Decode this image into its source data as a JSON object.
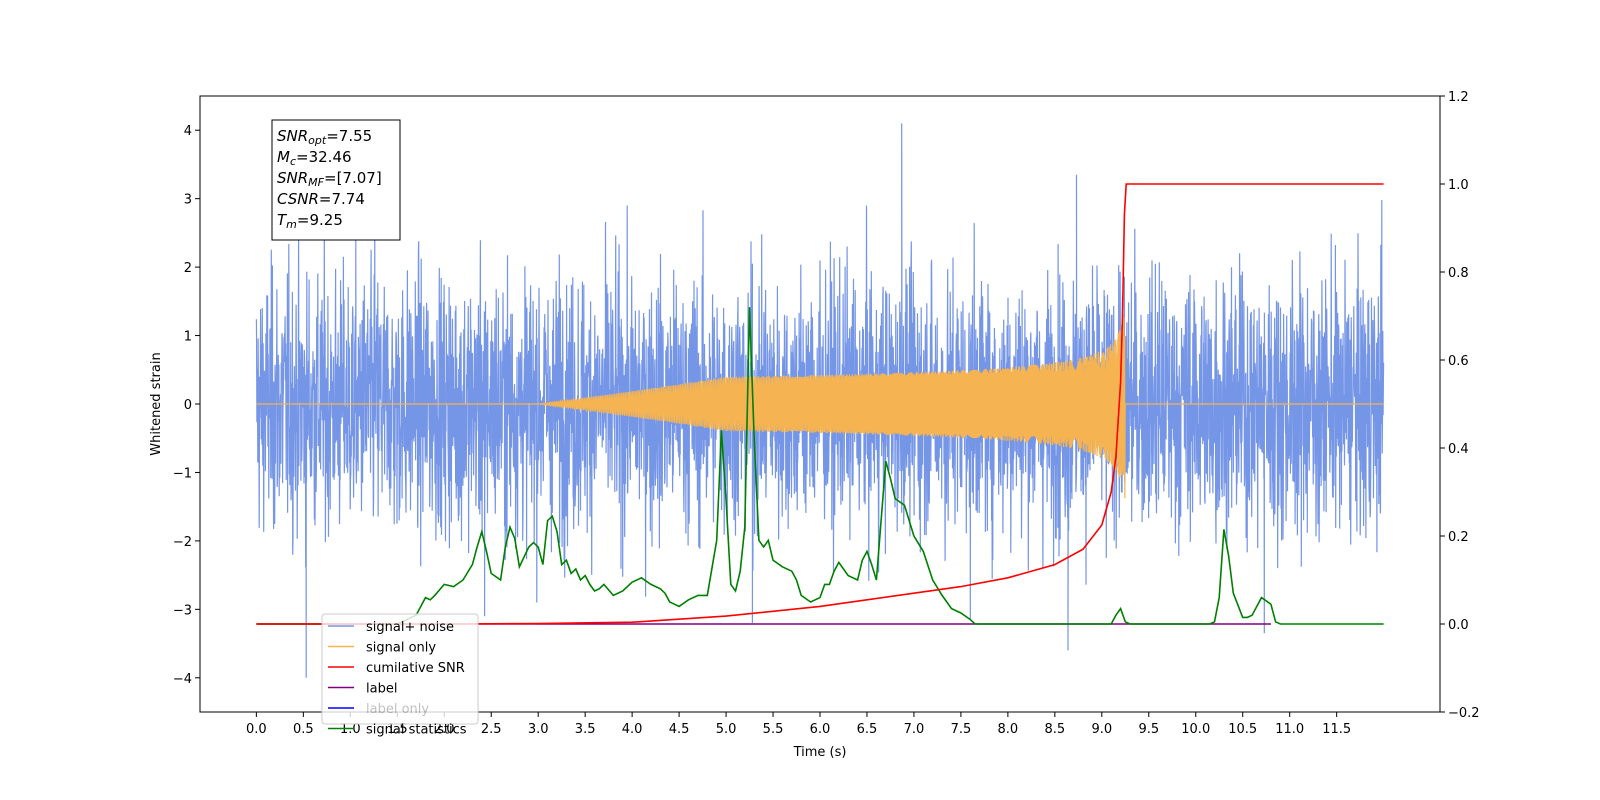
{
  "chart_data": {
    "type": "line",
    "title": "",
    "xlabel": "Time (s)",
    "ylabel": "Whitened strain",
    "xlim": [
      -0.6,
      12.6
    ],
    "ylim": [
      -4.5,
      4.5
    ],
    "y2lim": [
      -0.2,
      1.2
    ],
    "x_ticks": [
      0.0,
      0.5,
      1.0,
      1.5,
      2.0,
      2.5,
      3.0,
      3.5,
      4.0,
      4.5,
      5.0,
      5.5,
      6.0,
      6.5,
      7.0,
      7.5,
      8.0,
      8.5,
      9.0,
      9.5,
      10.0,
      10.5,
      11.0,
      11.5
    ],
    "x_tick_labels": [
      "0.0",
      "0.5",
      "1.0",
      "1.5",
      "2.0",
      "2.5",
      "3.0",
      "3.5",
      "4.0",
      "4.5",
      "5.0",
      "5.5",
      "6.0",
      "6.5",
      "7.0",
      "7.5",
      "8.0",
      "8.5",
      "9.0",
      "9.5",
      "10.0",
      "10.5",
      "11.0",
      "11.5"
    ],
    "y_ticks": [
      -4,
      -3,
      -2,
      -1,
      0,
      1,
      2,
      3,
      4
    ],
    "y_tick_labels": [
      "−4",
      "−3",
      "−2",
      "−1",
      "0",
      "1",
      "2",
      "3",
      "4"
    ],
    "y2_ticks": [
      -0.2,
      0.0,
      0.2,
      0.4,
      0.6,
      0.8,
      1.0,
      1.2
    ],
    "y2_tick_labels": [
      "−0.2",
      "0.0",
      "0.2",
      "0.4",
      "0.6",
      "0.8",
      "1.0",
      "1.2"
    ],
    "legend_position": "bottom-left",
    "grid": false,
    "stats_box": [
      {
        "sym": "SNR",
        "sub": "opt",
        "value": "=7.55"
      },
      {
        "sym": "M",
        "sub": "c",
        "value": "=32.46"
      },
      {
        "sym": "SNR",
        "sub": "MF",
        "value": "=[7.07]"
      },
      {
        "sym": "CSNR",
        "sub": "",
        "value": "=7.74"
      },
      {
        "sym": "T",
        "sub": "m",
        "value": "=9.25"
      }
    ],
    "series": [
      {
        "name": "signal+ noise",
        "color": "#7595e6",
        "axis": "left",
        "kind": "noise",
        "x_range": [
          0.0,
          12.0
        ],
        "typical_amplitude": 1.5,
        "peaks": [
          [
            0.53,
            -4.0
          ],
          [
            6.87,
            4.1
          ],
          [
            8.64,
            -3.6
          ],
          [
            8.73,
            3.35
          ],
          [
            11.98,
            2.98
          ],
          [
            10.73,
            -3.35
          ],
          [
            5.28,
            -3.2
          ],
          [
            1.26,
            3.1
          ],
          [
            2.43,
            -3.1
          ],
          [
            7.6,
            -3.15
          ]
        ]
      },
      {
        "name": "signal only",
        "color": "#f5b451",
        "axis": "left",
        "kind": "chirp",
        "x_range": [
          0.0,
          12.0
        ],
        "merger_time": 9.25,
        "peak_amplitude": 1.6
      },
      {
        "name": "cumilative SNR",
        "color": "#ff0000",
        "axis": "right",
        "x": [
          0.0,
          2.0,
          3.0,
          4.0,
          5.0,
          6.0,
          7.0,
          7.5,
          8.0,
          8.5,
          8.8,
          9.0,
          9.1,
          9.15,
          9.2,
          9.22,
          9.24,
          9.26,
          12.0
        ],
        "values": [
          0.0,
          0.0,
          0.001,
          0.004,
          0.018,
          0.04,
          0.07,
          0.085,
          0.105,
          0.135,
          0.17,
          0.225,
          0.3,
          0.38,
          0.55,
          0.7,
          0.93,
          1.0,
          1.0
        ]
      },
      {
        "name": "label",
        "color": "#800080",
        "axis": "right",
        "x": [
          0.0,
          10.8
        ],
        "values": [
          0.0,
          0.0
        ]
      },
      {
        "name": "label only",
        "color": "#0000ff",
        "axis": "right",
        "x": [],
        "values": []
      },
      {
        "name": "signal statistics",
        "color": "#008000",
        "axis": "right",
        "x": [
          0.0,
          1.5,
          1.7,
          1.8,
          1.85,
          1.9,
          2.0,
          2.1,
          2.2,
          2.3,
          2.35,
          2.4,
          2.45,
          2.5,
          2.6,
          2.65,
          2.7,
          2.75,
          2.8,
          2.9,
          2.95,
          3.0,
          3.05,
          3.1,
          3.15,
          3.2,
          3.25,
          3.3,
          3.35,
          3.4,
          3.45,
          3.5,
          3.55,
          3.6,
          3.65,
          3.7,
          3.8,
          3.9,
          4.0,
          4.1,
          4.2,
          4.3,
          4.35,
          4.4,
          4.45,
          4.5,
          4.6,
          4.7,
          4.8,
          4.9,
          4.95,
          5.0,
          5.05,
          5.1,
          5.15,
          5.2,
          5.25,
          5.3,
          5.35,
          5.4,
          5.45,
          5.5,
          5.6,
          5.7,
          5.75,
          5.8,
          5.9,
          6.0,
          6.05,
          6.1,
          6.15,
          6.2,
          6.3,
          6.4,
          6.45,
          6.5,
          6.55,
          6.6,
          6.7,
          6.75,
          6.8,
          6.9,
          7.0,
          7.1,
          7.2,
          7.3,
          7.4,
          7.5,
          7.6,
          7.65,
          7.7,
          7.8,
          8.0,
          9.1,
          9.15,
          9.2,
          9.25,
          9.3,
          10.15,
          10.2,
          10.25,
          10.3,
          10.35,
          10.4,
          10.5,
          10.55,
          10.6,
          10.7,
          10.8,
          10.85,
          10.9,
          12.0
        ],
        "values": [
          0.0,
          0.0,
          0.02,
          0.06,
          0.055,
          0.065,
          0.09,
          0.085,
          0.1,
          0.135,
          0.175,
          0.21,
          0.165,
          0.115,
          0.1,
          0.175,
          0.22,
          0.195,
          0.13,
          0.175,
          0.185,
          0.175,
          0.135,
          0.235,
          0.245,
          0.21,
          0.135,
          0.145,
          0.115,
          0.125,
          0.1,
          0.11,
          0.09,
          0.075,
          0.08,
          0.09,
          0.065,
          0.075,
          0.095,
          0.105,
          0.09,
          0.08,
          0.07,
          0.05,
          0.045,
          0.04,
          0.055,
          0.065,
          0.065,
          0.19,
          0.44,
          0.28,
          0.09,
          0.075,
          0.12,
          0.22,
          0.72,
          0.42,
          0.19,
          0.175,
          0.19,
          0.145,
          0.13,
          0.12,
          0.1,
          0.065,
          0.05,
          0.06,
          0.09,
          0.09,
          0.12,
          0.14,
          0.11,
          0.1,
          0.145,
          0.165,
          0.135,
          0.1,
          0.37,
          0.33,
          0.285,
          0.27,
          0.2,
          0.165,
          0.1,
          0.065,
          0.035,
          0.025,
          0.01,
          0.0,
          0.0,
          0.0,
          0.0,
          0.0,
          0.02,
          0.035,
          0.005,
          0.0,
          0.0,
          0.005,
          0.06,
          0.215,
          0.155,
          0.07,
          0.015,
          0.015,
          0.02,
          0.06,
          0.045,
          0.005,
          0.0,
          0.0
        ]
      }
    ]
  }
}
